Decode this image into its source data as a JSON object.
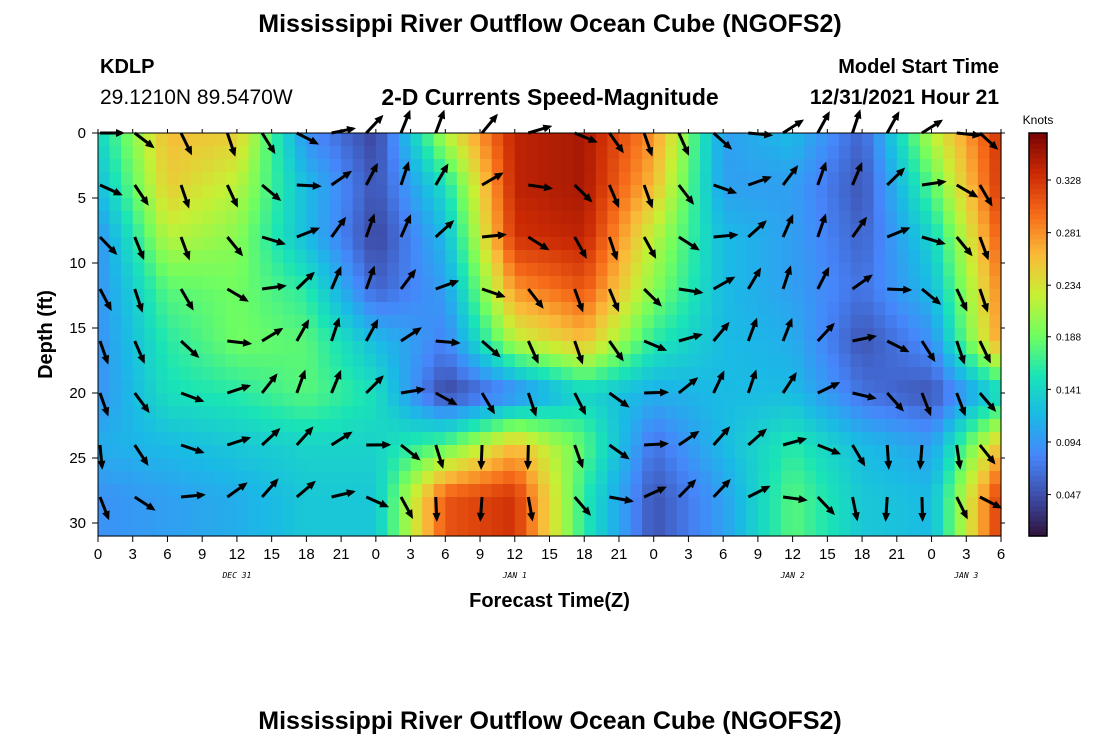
{
  "header": {
    "title": "Mississippi River Outflow Ocean Cube (NGOFS2)",
    "station_id": "KDLP",
    "station_coords": "29.1210N  89.5470W",
    "subtitle": "2-D Currents Speed-Magnitude",
    "model_start_label": "Model Start Time",
    "model_start_value": "12/31/2021 Hour 21"
  },
  "footer": {
    "title": "Mississippi River Outflow Ocean Cube (NGOFS2)"
  },
  "chart_data": {
    "type": "heatmap",
    "title": "2-D Currents Speed-Magnitude",
    "xlabel": "Forecast Time(Z)",
    "ylabel": "Depth (ft)",
    "x_tick_labels": [
      "0",
      "3",
      "6",
      "9",
      "12",
      "15",
      "18",
      "21",
      "0",
      "3",
      "6",
      "9",
      "12",
      "15",
      "18",
      "21",
      "0",
      "3",
      "6",
      "9",
      "12",
      "15",
      "18",
      "21",
      "0",
      "3",
      "6"
    ],
    "x_range_hours": [
      0,
      78
    ],
    "day_labels": [
      {
        "text": "DEC 31",
        "hour": 12
      },
      {
        "text": "JAN 1",
        "hour": 36
      },
      {
        "text": "JAN 2",
        "hour": 60
      },
      {
        "text": "JAN 3",
        "hour": 75
      }
    ],
    "y_ticks": [
      0,
      5,
      10,
      15,
      20,
      25,
      30
    ],
    "y_range": [
      0,
      31
    ],
    "y_inverted": true,
    "colorbar": {
      "unit": "Knots",
      "ticks": [
        0.047,
        0.094,
        0.141,
        0.188,
        0.234,
        0.281,
        0.328
      ],
      "range": [
        0.01,
        0.37
      ],
      "colors": [
        "#30123b",
        "#3e4da8",
        "#4686fb",
        "#1ab9e6",
        "#1ae4b6",
        "#71fe5f",
        "#c8ef34",
        "#faba39",
        "#f66b19",
        "#cb2a04",
        "#7a0403"
      ]
    },
    "depths_ft": [
      0,
      4,
      8,
      12,
      16,
      20,
      24,
      28
    ],
    "hours": [
      0,
      6,
      12,
      18,
      24,
      30,
      36,
      42,
      48,
      54,
      60,
      66,
      72,
      78
    ],
    "speed_knots": [
      [
        0.14,
        0.26,
        0.25,
        0.09,
        0.04,
        0.22,
        0.34,
        0.35,
        0.28,
        0.1,
        0.12,
        0.06,
        0.22,
        0.33
      ],
      [
        0.12,
        0.25,
        0.22,
        0.12,
        0.05,
        0.15,
        0.34,
        0.35,
        0.26,
        0.1,
        0.1,
        0.05,
        0.18,
        0.33
      ],
      [
        0.09,
        0.22,
        0.2,
        0.12,
        0.04,
        0.12,
        0.33,
        0.34,
        0.22,
        0.12,
        0.1,
        0.06,
        0.14,
        0.31
      ],
      [
        0.09,
        0.18,
        0.19,
        0.16,
        0.06,
        0.1,
        0.28,
        0.31,
        0.2,
        0.12,
        0.1,
        0.07,
        0.12,
        0.29
      ],
      [
        0.09,
        0.16,
        0.19,
        0.18,
        0.12,
        0.08,
        0.22,
        0.26,
        0.16,
        0.12,
        0.11,
        0.05,
        0.09,
        0.28
      ],
      [
        0.09,
        0.15,
        0.16,
        0.18,
        0.15,
        0.04,
        0.08,
        0.14,
        0.11,
        0.12,
        0.12,
        0.07,
        0.05,
        0.14
      ],
      [
        0.11,
        0.12,
        0.13,
        0.14,
        0.14,
        0.18,
        0.26,
        0.18,
        0.07,
        0.12,
        0.16,
        0.12,
        0.1,
        0.26
      ],
      [
        0.09,
        0.1,
        0.11,
        0.13,
        0.13,
        0.31,
        0.33,
        0.16,
        0.05,
        0.1,
        0.18,
        0.13,
        0.12,
        0.33
      ]
    ],
    "arrow_hours": [
      0,
      3,
      7,
      11,
      14,
      17,
      20,
      23,
      26,
      29,
      33,
      37,
      41,
      44,
      47,
      50,
      53,
      56,
      59,
      62,
      65,
      68,
      71,
      74,
      76
    ],
    "arrow_depths_ft": [
      0,
      4,
      8,
      12,
      16,
      20,
      24,
      28
    ]
  }
}
